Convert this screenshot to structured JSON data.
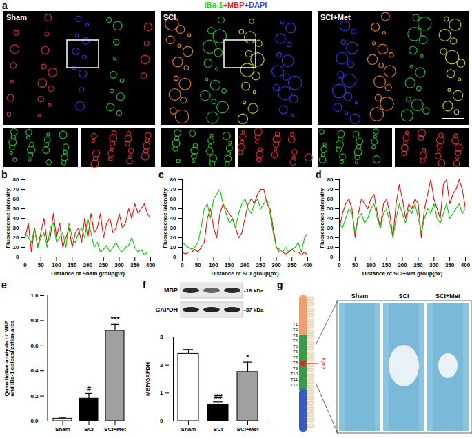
{
  "figure": {
    "a": {
      "panel": "a",
      "legend": [
        {
          "text": "IBa-1",
          "color": "#22dd22"
        },
        {
          "text": "+MBP",
          "color": "#ee2222"
        },
        {
          "text": "+DAPI",
          "color": "#3344ff"
        }
      ],
      "groups": [
        "Sham",
        "SCI",
        "SCI+Met"
      ]
    },
    "f_blot": {
      "rows": [
        {
          "label": "MBP",
          "size": "-18 kDa"
        },
        {
          "label": "GAPDH",
          "size": "-37 kDa"
        }
      ]
    },
    "g": {
      "panel": "g",
      "vertebrae": [
        "T1",
        "T2",
        "T3",
        "T4",
        "T5",
        "T6",
        "T7",
        "T8",
        "T9",
        "T10",
        "T11",
        "T12"
      ],
      "injury_label": "Injury",
      "groups": [
        "Sham",
        "SCI",
        "SCI+Met"
      ]
    }
  },
  "chart_data": [
    {
      "panel": "b",
      "type": "line",
      "x_label": "Distance of Sham group(px)",
      "y_label": "Fluorescence Intensity",
      "x": [
        0,
        10,
        20,
        30,
        40,
        50,
        60,
        70,
        80,
        90,
        100,
        110,
        120,
        130,
        140,
        150,
        160,
        170,
        180,
        190,
        200,
        210,
        220,
        230,
        240,
        250,
        260,
        270,
        280,
        290,
        300,
        310,
        320,
        330,
        340,
        350,
        360,
        370,
        380,
        390,
        400
      ],
      "series": [
        {
          "color": "#ff0000",
          "values": [
            20,
            35,
            5,
            30,
            10,
            25,
            40,
            15,
            20,
            45,
            20,
            35,
            10,
            20,
            30,
            10,
            25,
            30,
            15,
            40,
            20,
            45,
            25,
            30,
            45,
            20,
            35,
            40,
            25,
            30,
            45,
            30,
            35,
            50,
            40,
            55,
            45,
            50,
            55,
            45,
            40
          ]
        },
        {
          "color": "#00cc00",
          "values": [
            25,
            20,
            15,
            30,
            10,
            20,
            25,
            10,
            30,
            35,
            15,
            20,
            25,
            10,
            35,
            20,
            15,
            25,
            30,
            20,
            40,
            25,
            10,
            15,
            5,
            8,
            12,
            5,
            10,
            15,
            8,
            5,
            10,
            12,
            20,
            10,
            5,
            8,
            2,
            5,
            5
          ]
        }
      ],
      "xlim": [
        0,
        400
      ],
      "xticks": [
        0,
        50,
        100,
        150,
        200,
        250,
        300,
        350,
        400
      ],
      "ylim": [
        0,
        80
      ],
      "yticks": [
        0,
        10,
        20,
        30,
        40,
        50,
        60,
        70,
        80
      ]
    },
    {
      "panel": "c",
      "type": "line",
      "x_label": "Distance of SCI group(px)",
      "y_label": "Fluorescence Intensity",
      "x": [
        0,
        10,
        20,
        30,
        40,
        50,
        60,
        70,
        80,
        90,
        100,
        110,
        120,
        130,
        140,
        150,
        160,
        170,
        180,
        190,
        200,
        210,
        220,
        230,
        240,
        250,
        260,
        270,
        280,
        290,
        300,
        310,
        320,
        330,
        340,
        350,
        360,
        370,
        380,
        390,
        400
      ],
      "series": [
        {
          "color": "#ff0000",
          "values": [
            5,
            3,
            5,
            5,
            8,
            5,
            10,
            15,
            40,
            50,
            30,
            20,
            45,
            55,
            50,
            45,
            40,
            30,
            20,
            25,
            40,
            55,
            60,
            55,
            65,
            70,
            70,
            55,
            50,
            30,
            10,
            5,
            5,
            3,
            5,
            8,
            5,
            5,
            2,
            5,
            2
          ]
        },
        {
          "color": "#00cc00",
          "values": [
            15,
            12,
            10,
            8,
            10,
            15,
            30,
            50,
            55,
            40,
            60,
            65,
            70,
            55,
            45,
            35,
            40,
            30,
            45,
            55,
            60,
            50,
            45,
            55,
            60,
            50,
            55,
            60,
            45,
            25,
            10,
            8,
            5,
            10,
            5,
            8,
            10,
            15,
            5,
            20,
            25
          ]
        }
      ],
      "xlim": [
        0,
        400
      ],
      "xticks": [
        0,
        50,
        100,
        150,
        200,
        250,
        300,
        350,
        400
      ],
      "ylim": [
        0,
        80
      ],
      "yticks": [
        0,
        10,
        20,
        30,
        40,
        50,
        60,
        70,
        80
      ]
    },
    {
      "panel": "d",
      "type": "line",
      "x_label": "Distance of SCI+Met group(px)",
      "y_label": "Fluorescence Intensity",
      "x": [
        0,
        10,
        20,
        30,
        40,
        50,
        60,
        70,
        80,
        90,
        100,
        110,
        120,
        130,
        140,
        150,
        160,
        170,
        180,
        190,
        200,
        210,
        220,
        230,
        240,
        250,
        260,
        270,
        280,
        290,
        300,
        310,
        320,
        330,
        340,
        350,
        360,
        370,
        380,
        390,
        400
      ],
      "series": [
        {
          "color": "#ff0000",
          "values": [
            30,
            45,
            55,
            60,
            50,
            20,
            45,
            60,
            55,
            50,
            60,
            65,
            45,
            30,
            55,
            60,
            45,
            20,
            55,
            75,
            60,
            40,
            55,
            50,
            60,
            55,
            20,
            50,
            65,
            80,
            60,
            50,
            40,
            75,
            80,
            55,
            65,
            70,
            80,
            70,
            50
          ]
        },
        {
          "color": "#00cc00",
          "values": [
            35,
            30,
            40,
            50,
            45,
            25,
            40,
            45,
            35,
            40,
            50,
            55,
            40,
            30,
            45,
            50,
            35,
            20,
            40,
            55,
            45,
            35,
            50,
            45,
            55,
            40,
            25,
            40,
            50,
            45,
            55,
            40,
            35,
            45,
            55,
            40,
            45,
            50,
            55,
            45,
            50
          ]
        }
      ],
      "xlim": [
        0,
        400
      ],
      "xticks": [
        0,
        50,
        100,
        150,
        200,
        250,
        300,
        350,
        400
      ],
      "ylim": [
        0,
        80
      ],
      "yticks": [
        0,
        10,
        20,
        30,
        40,
        50,
        60,
        70,
        80
      ]
    },
    {
      "panel": "e",
      "type": "bar",
      "y_label": "Quantitative analysis of MBP and IBa-1 colocalization area",
      "categories": [
        "Sham",
        "SCI",
        "SCI+Met"
      ],
      "values": [
        0.02,
        0.18,
        0.72
      ],
      "errors": [
        0.01,
        0.04,
        0.05
      ],
      "annotations": [
        null,
        "#",
        "***"
      ],
      "colors": [
        "#ffffff",
        "#000000",
        "#a0a0a0"
      ],
      "ylim": [
        0,
        1.0
      ],
      "yticks": [
        {
          "value": 0,
          "label": "0.0"
        },
        {
          "value": 0.2,
          "label": "0.2"
        },
        {
          "value": 0.4,
          "label": "0.4"
        },
        {
          "value": 0.6,
          "label": "0.6"
        },
        {
          "value": 0.8,
          "label": "0.8"
        },
        {
          "value": 1.0,
          "label": "1.0"
        }
      ]
    },
    {
      "panel": "f",
      "type": "bar",
      "y_label": "MBP/GAPDH",
      "categories": [
        "Sham",
        "SCI",
        "SCI+Met"
      ],
      "values": [
        2.4,
        0.6,
        1.75
      ],
      "errors": [
        0.15,
        0.08,
        0.35
      ],
      "annotations": [
        null,
        "##",
        "*"
      ],
      "colors": [
        "#ffffff",
        "#000000",
        "#a0a0a0"
      ],
      "ylim": [
        0,
        3
      ],
      "yticks": [
        0,
        1,
        2,
        3
      ]
    }
  ]
}
